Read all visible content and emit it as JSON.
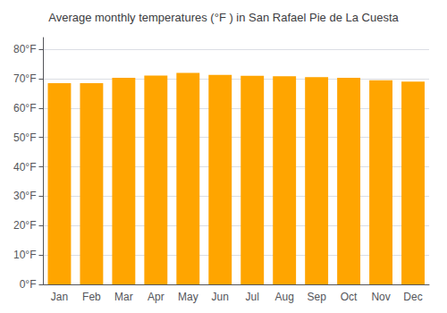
{
  "chart_data": {
    "type": "bar",
    "title": "Average monthly temperatures (°F ) in San Rafael Pie de La Cuesta",
    "categories": [
      "Jan",
      "Feb",
      "Mar",
      "Apr",
      "May",
      "Jun",
      "Jul",
      "Aug",
      "Sep",
      "Oct",
      "Nov",
      "Dec"
    ],
    "values": [
      68.5,
      68.5,
      70.3,
      71.1,
      72.0,
      71.3,
      71.0,
      70.8,
      70.5,
      70.3,
      69.5,
      69.0
    ],
    "color": "#FFA500",
    "ylim": [
      0,
      84
    ],
    "yticks": [
      {
        "value": 0,
        "label": "0°F"
      },
      {
        "value": 10,
        "label": "10°F"
      },
      {
        "value": 20,
        "label": "20°F"
      },
      {
        "value": 30,
        "label": "30°F"
      },
      {
        "value": 40,
        "label": "40°F"
      },
      {
        "value": 50,
        "label": "50°F"
      },
      {
        "value": 60,
        "label": "60°F"
      },
      {
        "value": 70,
        "label": "70°F"
      },
      {
        "value": 80,
        "label": "80°F"
      }
    ],
    "grid": true
  }
}
